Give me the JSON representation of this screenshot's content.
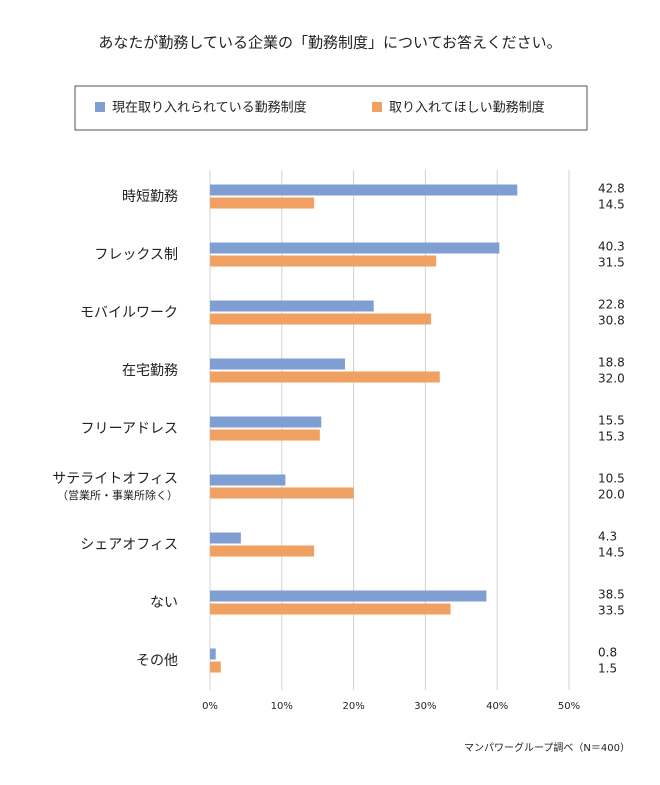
{
  "chart_data": {
    "type": "hbar",
    "title": "あなたが勤務している企業の「勤務制度」についてお答えください。",
    "categories": [
      "時短勤務",
      "フレックス制",
      "モバイルワーク",
      "在宅勤務",
      "フリーアドレス",
      "サテライトオフィス",
      "シェアオフィス",
      "ない",
      "その他"
    ],
    "category_notes": [
      null,
      null,
      null,
      null,
      null,
      "（営業所・事業所除く）",
      null,
      null,
      null
    ],
    "series": [
      {
        "name": "現在取り入れられている勤務制度",
        "color": "#7f9fd3",
        "values": [
          42.8,
          40.3,
          22.8,
          18.8,
          15.5,
          10.5,
          4.3,
          38.5,
          0.8
        ],
        "value_labels": [
          "42.8",
          "40.3",
          "22.8",
          "18.8",
          "15.5",
          "10.5",
          "4.3",
          "38.5",
          "0.8"
        ]
      },
      {
        "name": "取り入れてほしい勤務制度",
        "color": "#f0a060",
        "values": [
          14.5,
          31.5,
          30.8,
          32.0,
          15.3,
          20.0,
          14.5,
          33.5,
          1.5
        ],
        "value_labels": [
          "14.5",
          "31.5",
          "30.8",
          "32.0",
          "15.3",
          "20.0",
          "14.5",
          "33.5",
          "1.5"
        ]
      }
    ],
    "xlim": [
      0,
      50
    ],
    "xticks": [
      {
        "value": 0,
        "label": "0%"
      },
      {
        "value": 10,
        "label": "10%"
      },
      {
        "value": 20,
        "label": "20%"
      },
      {
        "value": 30,
        "label": "30%"
      },
      {
        "value": 40,
        "label": "40%"
      },
      {
        "value": 50,
        "label": "50%"
      }
    ],
    "grid": true,
    "source": "マンパワーグループ調べ（N＝400）"
  }
}
